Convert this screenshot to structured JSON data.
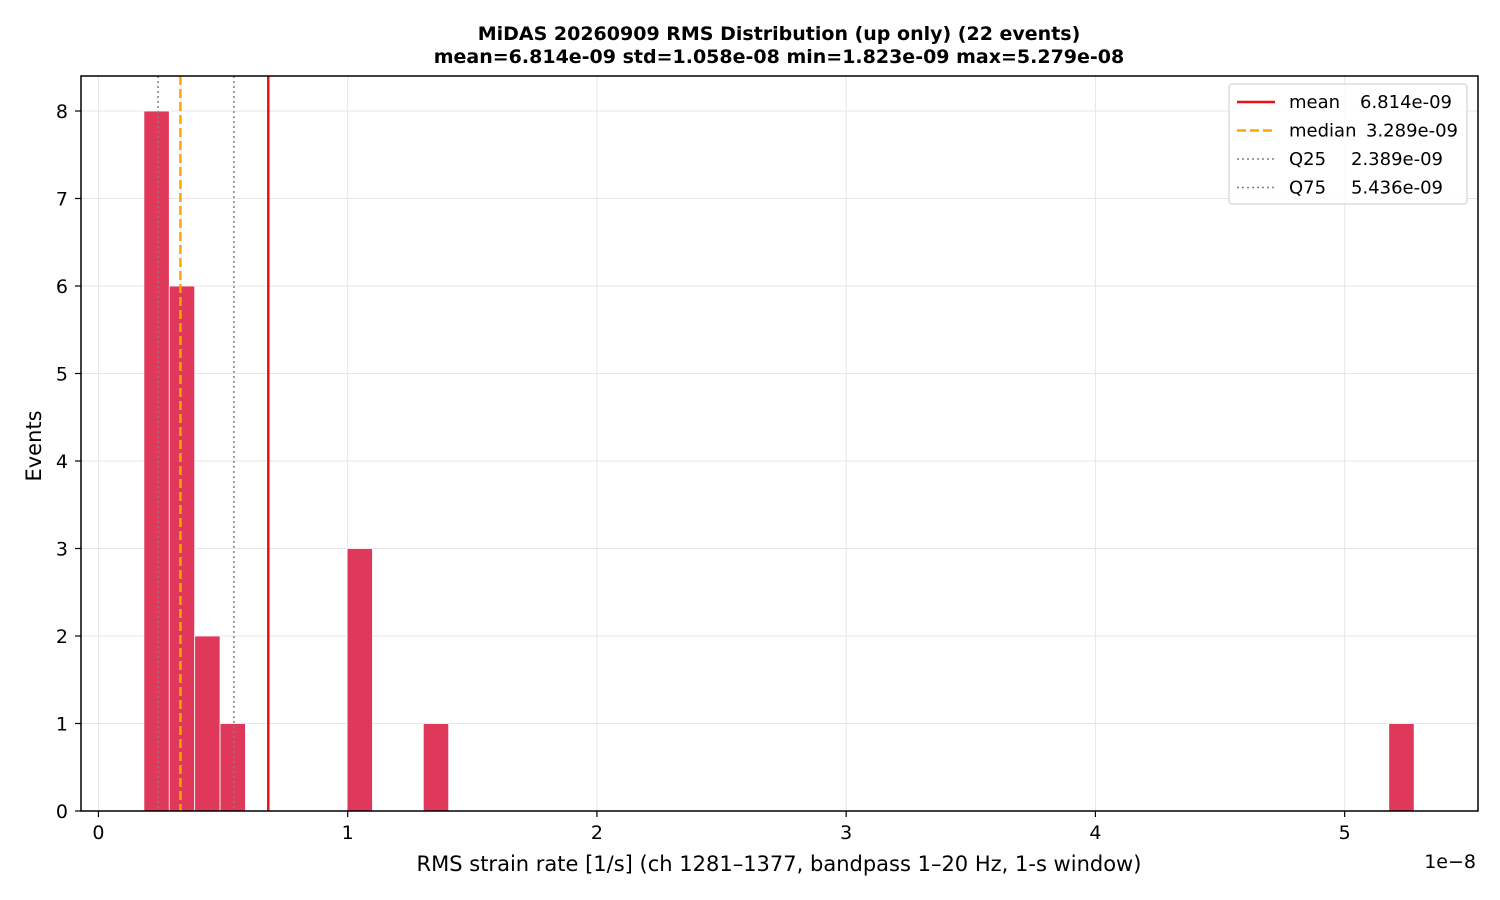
{
  "chart_data": {
    "type": "bar",
    "title": "MiDAS 20260909  RMS Distribution  (up only)  (22 events)",
    "subtitle": "mean=6.814e-09  std=1.058e-08  min=1.823e-09  max=5.279e-08",
    "xlabel": "RMS strain rate [1/s]  (ch 1281–1377, bandpass 1–20 Hz, 1-s window)",
    "ylabel": "Events",
    "x_offset_label": "1e−8",
    "xlim": [
      -0.07,
      5.535
    ],
    "ylim": [
      0,
      8.4
    ],
    "x_ticks": [
      0,
      1,
      2,
      3,
      4,
      5
    ],
    "x_tick_labels": [
      "0",
      "1",
      "2",
      "3",
      "4",
      "5"
    ],
    "y_ticks": [
      0,
      1,
      2,
      3,
      4,
      5,
      6,
      7,
      8
    ],
    "y_tick_labels": [
      "0",
      "1",
      "2",
      "3",
      "4",
      "5",
      "6",
      "7",
      "8"
    ],
    "grid": true,
    "legend_position": "top-right",
    "bar_color": "#e0385a",
    "bin_width": 0.1019,
    "bins": [
      {
        "x0": 0.1823,
        "count": 8
      },
      {
        "x0": 0.2842,
        "count": 6
      },
      {
        "x0": 0.3861,
        "count": 2
      },
      {
        "x0": 0.488,
        "count": 1
      },
      {
        "x0": 0.9976,
        "count": 3
      },
      {
        "x0": 1.3033,
        "count": 1
      },
      {
        "x0": 5.177,
        "count": 1
      }
    ],
    "vlines": [
      {
        "name": "mean",
        "label_value": "6.814e-09",
        "x": 0.6814,
        "color": "#ee1111",
        "style": "solid"
      },
      {
        "name": "median",
        "label_value": "3.289e-09",
        "x": 0.3289,
        "color": "#ffa500",
        "style": "dashed"
      },
      {
        "name": "Q25",
        "label_value": "2.389e-09",
        "x": 0.2389,
        "color": "#808080",
        "style": "dotted"
      },
      {
        "name": "Q75",
        "label_value": "5.436e-09",
        "x": 0.5436,
        "color": "#808080",
        "style": "dotted"
      }
    ]
  }
}
